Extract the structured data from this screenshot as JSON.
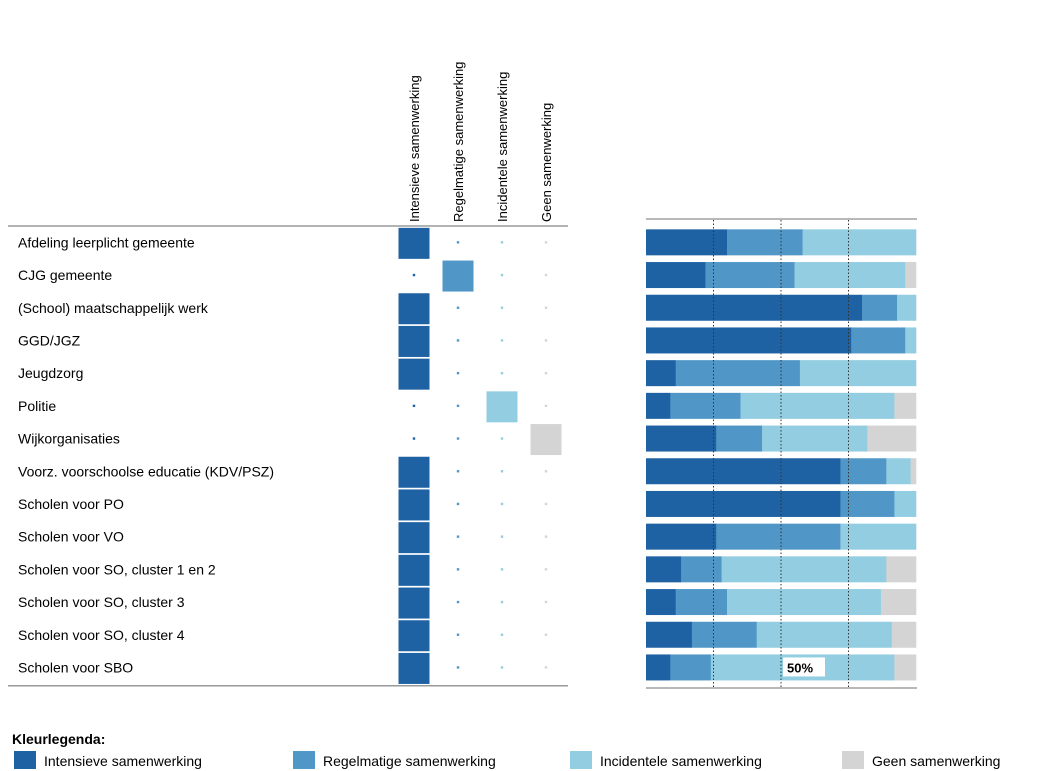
{
  "chart_data": {
    "type": "bar",
    "stacked": true,
    "orientation": "horizontal",
    "title": "",
    "xlabel": "",
    "ylabel": "",
    "xlim": [
      0,
      100
    ],
    "grid": true,
    "gridlines_at": [
      25,
      50,
      75
    ],
    "annotation": "50%",
    "categories": [
      "Afdeling leerplicht gemeente",
      "CJG gemeente",
      "(School) maatschappelijk werk",
      "GGD/JGZ",
      "Jeugdzorg",
      "Politie",
      "Wijkorganisaties",
      "Voorz. voorschoolse educatie (KDV/PSZ)",
      "Scholen voor PO",
      "Scholen voor VO",
      "Scholen voor SO, cluster 1 en 2",
      "Scholen voor SO, cluster 3",
      "Scholen voor SO, cluster 4",
      "Scholen voor SBO"
    ],
    "series": [
      {
        "name": "Intensieve samenwerking",
        "color": "#1f62a3",
        "values": [
          30,
          22,
          80,
          76,
          11,
          9,
          26,
          72,
          72,
          26,
          13,
          11,
          17,
          9
        ]
      },
      {
        "name": "Regelmatige samenwerking",
        "color": "#5097c8",
        "values": [
          28,
          33,
          13,
          20,
          46,
          26,
          17,
          17,
          20,
          46,
          15,
          19,
          24,
          15
        ]
      },
      {
        "name": "Incidentele samenwerking",
        "color": "#92cde2",
        "values": [
          42,
          41,
          7,
          4,
          43,
          57,
          39,
          9,
          8,
          28,
          61,
          57,
          50,
          68
        ]
      },
      {
        "name": "Geen samenwerking",
        "color": "#d4d4d4",
        "values": [
          0,
          4,
          0,
          0,
          0,
          8,
          18,
          2,
          0,
          0,
          11,
          13,
          9,
          8
        ]
      }
    ],
    "matrix": {
      "column_headers": [
        "Intensieve samenwerking",
        "Regelmatige samenwerking",
        "Incidentele samenwerking",
        "Geen samenwerking"
      ],
      "selected_column": [
        0,
        1,
        0,
        0,
        0,
        2,
        3,
        0,
        0,
        0,
        0,
        0,
        0,
        0
      ]
    },
    "legend": {
      "title": "Kleurlegenda:",
      "placement": "bottom",
      "entries": [
        "Intensieve samenwerking",
        "Regelmatige samenwerking",
        "Incidentele samenwerking",
        "Geen samenwerking"
      ]
    }
  }
}
